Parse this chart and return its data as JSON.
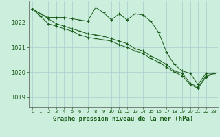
{
  "title": "Graphe pression niveau de la mer (hPa)",
  "background_color": "#cceedd",
  "grid_color": "#aacccc",
  "line_color": "#1a5c1a",
  "xlim": [
    -0.5,
    23.5
  ],
  "ylim": [
    1018.6,
    1022.85
  ],
  "yticks": [
    1019,
    1020,
    1021,
    1022
  ],
  "xticks": [
    0,
    1,
    2,
    3,
    4,
    5,
    6,
    7,
    8,
    9,
    10,
    11,
    12,
    13,
    14,
    15,
    16,
    17,
    18,
    19,
    20,
    21,
    22,
    23
  ],
  "series1": [
    1022.55,
    1022.35,
    1022.2,
    1022.2,
    1022.2,
    1022.15,
    1022.1,
    1022.05,
    1022.6,
    1022.4,
    1022.1,
    1022.35,
    1022.1,
    1022.35,
    1022.3,
    1022.05,
    1021.6,
    1020.8,
    1020.3,
    1020.05,
    1019.95,
    1019.5,
    1019.95,
    1019.95
  ],
  "series2": [
    1022.55,
    1022.35,
    1022.15,
    1021.95,
    1021.85,
    1021.75,
    1021.65,
    1021.55,
    1021.5,
    1021.45,
    1021.35,
    1021.25,
    1021.15,
    1020.95,
    1020.85,
    1020.65,
    1020.5,
    1020.3,
    1020.05,
    1019.95,
    1019.55,
    1019.4,
    1019.85,
    1019.95
  ],
  "series3": [
    1022.55,
    1022.25,
    1021.95,
    1021.85,
    1021.75,
    1021.65,
    1021.5,
    1021.4,
    1021.35,
    1021.3,
    1021.25,
    1021.1,
    1021.0,
    1020.85,
    1020.75,
    1020.55,
    1020.4,
    1020.2,
    1020.0,
    1019.85,
    1019.5,
    1019.35,
    1019.8,
    1019.95
  ]
}
